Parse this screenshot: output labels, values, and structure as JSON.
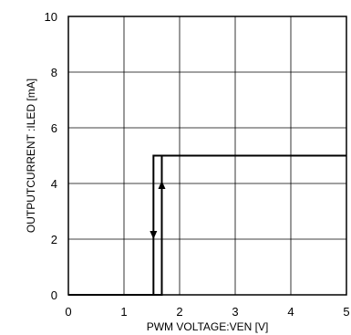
{
  "chart_data": {
    "type": "line",
    "title": "",
    "xlabel": "PWM VOLTAGE:VEN [V]",
    "ylabel": "OUTPUTCURRENT :ILED [mA]",
    "xlim": [
      0,
      5
    ],
    "ylim": [
      0,
      10
    ],
    "xticks": [
      "0",
      "1",
      "2",
      "3",
      "4",
      "5"
    ],
    "yticks": [
      "0",
      "2",
      "4",
      "6",
      "8",
      "10"
    ],
    "grid": true,
    "legend": "none",
    "series": [
      {
        "x": [
          0,
          1.53,
          1.53,
          5
        ],
        "y": [
          0,
          0,
          5,
          5
        ],
        "direction": "falling",
        "arrow": {
          "x": 1.53,
          "y": [
            4.5,
            2.0
          ]
        }
      },
      {
        "x": [
          0,
          1.68,
          1.68,
          5
        ],
        "y": [
          0,
          0,
          5,
          5
        ],
        "direction": "rising",
        "arrow": {
          "x": 1.68,
          "y": [
            2.2,
            4.1
          ]
        }
      }
    ],
    "colors": {
      "line": "#000000",
      "grid": "#000000",
      "background": "#ffffff"
    }
  }
}
